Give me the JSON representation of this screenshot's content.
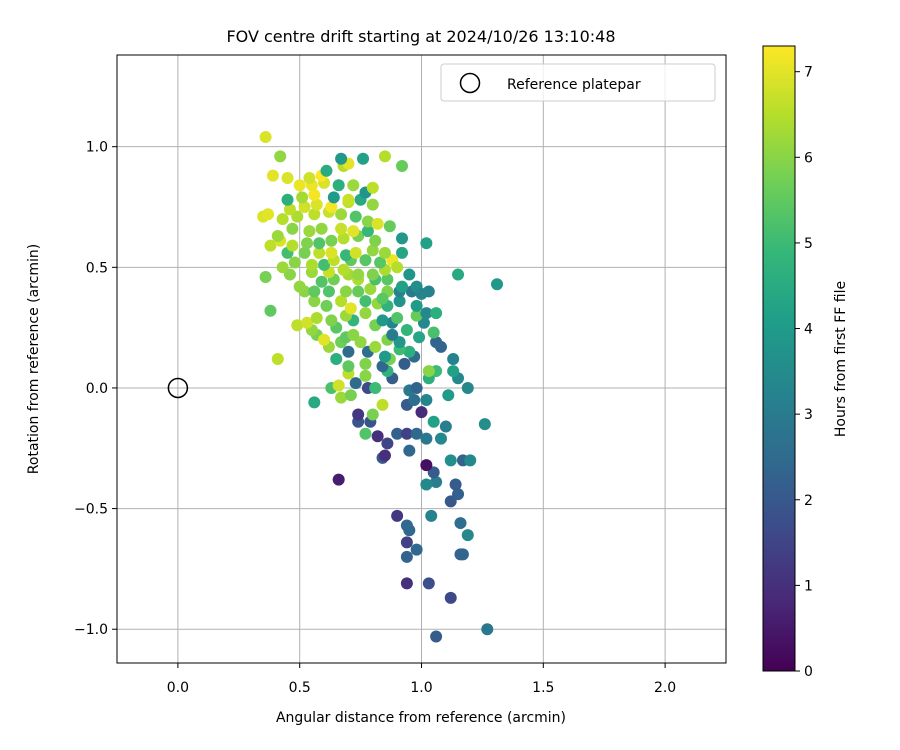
{
  "chart_data": {
    "type": "scatter",
    "title": "FOV centre drift starting at 2024/10/26 13:10:48",
    "xlabel": "Angular distance from reference (arcmin)",
    "ylabel": "Rotation from reference (arcmin)",
    "xlim": [
      -0.25,
      2.25
    ],
    "ylim": [
      -1.14,
      1.38
    ],
    "xticks": [
      "0.0",
      "0.5",
      "1.0",
      "1.5",
      "2.0"
    ],
    "xtick_values": [
      0,
      0.5,
      1.0,
      1.5,
      2.0
    ],
    "yticks": [
      "−1.0",
      "−0.5",
      "0.0",
      "0.5",
      "1.0"
    ],
    "ytick_values": [
      -1.0,
      -0.5,
      0,
      0.5,
      1.0
    ],
    "grid": true,
    "legend": {
      "label": "Reference platepar",
      "placement": "top-right",
      "marker": "open-circle"
    },
    "reference_point": {
      "x": 0.0,
      "y": 0.0
    },
    "colorbar": {
      "label": "Hours from first FF file",
      "range": [
        0,
        7.3
      ],
      "ticks": [
        "0",
        "1",
        "2",
        "3",
        "4",
        "5",
        "6",
        "7"
      ],
      "tick_values": [
        0,
        1,
        2,
        3,
        4,
        5,
        6,
        7
      ],
      "colormap": "viridis"
    },
    "points": [
      [
        1.06,
        -1.03,
        2.1
      ],
      [
        1.27,
        -1.0,
        2.9
      ],
      [
        1.12,
        -0.87,
        1.6
      ],
      [
        0.94,
        -0.81,
        1.0
      ],
      [
        1.03,
        -0.81,
        1.8
      ],
      [
        1.17,
        -0.69,
        2.4
      ],
      [
        1.16,
        -0.69,
        2.3
      ],
      [
        0.94,
        -0.7,
        2.3
      ],
      [
        0.94,
        -0.64,
        1.4
      ],
      [
        0.98,
        -0.67,
        2.4
      ],
      [
        1.19,
        -0.61,
        3.4
      ],
      [
        0.95,
        -0.59,
        2.4
      ],
      [
        0.94,
        -0.57,
        2.4
      ],
      [
        1.16,
        -0.56,
        2.6
      ],
      [
        1.04,
        -0.53,
        3.2
      ],
      [
        0.9,
        -0.53,
        1.2
      ],
      [
        1.12,
        -0.47,
        2.0
      ],
      [
        1.15,
        -0.44,
        2.2
      ],
      [
        1.14,
        -0.4,
        2.1
      ],
      [
        1.06,
        -0.39,
        3.1
      ],
      [
        1.02,
        -0.4,
        3.4
      ],
      [
        1.05,
        -0.35,
        2.1
      ],
      [
        1.02,
        -0.32,
        0.3
      ],
      [
        0.66,
        -0.38,
        0.6
      ],
      [
        0.84,
        -0.29,
        2.0
      ],
      [
        0.85,
        -0.28,
        1.0
      ],
      [
        1.12,
        -0.3,
        3.6
      ],
      [
        1.17,
        -0.3,
        2.3
      ],
      [
        1.2,
        -0.3,
        3.4
      ],
      [
        0.86,
        -0.23,
        1.5
      ],
      [
        0.95,
        -0.26,
        2.4
      ],
      [
        0.9,
        -0.19,
        2.2
      ],
      [
        0.94,
        -0.19,
        1.4
      ],
      [
        0.98,
        -0.19,
        2.4
      ],
      [
        1.02,
        -0.21,
        2.9
      ],
      [
        1.08,
        -0.21,
        3.4
      ],
      [
        1.26,
        -0.15,
        3.6
      ],
      [
        0.82,
        -0.2,
        1.0
      ],
      [
        0.77,
        -0.19,
        5.3
      ],
      [
        0.74,
        -0.14,
        1.9
      ],
      [
        0.79,
        -0.14,
        1.9
      ],
      [
        1.0,
        -0.1,
        0.9
      ],
      [
        1.05,
        -0.14,
        4.2
      ],
      [
        1.1,
        -0.16,
        3.1
      ],
      [
        0.74,
        -0.11,
        1.2
      ],
      [
        0.8,
        -0.11,
        5.8
      ],
      [
        0.84,
        -0.07,
        6.6
      ],
      [
        0.94,
        -0.07,
        2.1
      ],
      [
        0.97,
        -0.05,
        2.6
      ],
      [
        1.02,
        -0.05,
        3.3
      ],
      [
        0.56,
        -0.06,
        4.4
      ],
      [
        0.67,
        -0.04,
        6.2
      ],
      [
        0.71,
        -0.03,
        5.8
      ],
      [
        0.63,
        0.0,
        5.2
      ],
      [
        0.66,
        0.01,
        6.8
      ],
      [
        0.73,
        0.02,
        2.5
      ],
      [
        0.78,
        0.0,
        1.6
      ],
      [
        0.81,
        0.0,
        5.0
      ],
      [
        0.95,
        -0.01,
        2.9
      ],
      [
        0.98,
        0.0,
        2.3
      ],
      [
        1.11,
        -0.03,
        4.0
      ],
      [
        1.19,
        0.0,
        3.4
      ],
      [
        0.88,
        0.04,
        2.1
      ],
      [
        1.03,
        0.04,
        4.6
      ],
      [
        1.06,
        0.07,
        5.0
      ],
      [
        1.15,
        0.04,
        3.4
      ],
      [
        0.7,
        0.06,
        6.6
      ],
      [
        0.77,
        0.05,
        6.0
      ],
      [
        0.86,
        0.07,
        4.7
      ],
      [
        0.84,
        0.09,
        2.4
      ],
      [
        1.03,
        0.07,
        6.0
      ],
      [
        1.13,
        0.07,
        4.2
      ],
      [
        1.13,
        0.12,
        3.2
      ],
      [
        0.93,
        0.1,
        2.1
      ],
      [
        0.97,
        0.13,
        2.5
      ],
      [
        0.65,
        0.12,
        4.6
      ],
      [
        0.7,
        0.09,
        5.5
      ],
      [
        0.77,
        0.1,
        5.9
      ],
      [
        0.87,
        0.12,
        5.8
      ],
      [
        0.95,
        0.15,
        4.6
      ],
      [
        1.08,
        0.17,
        2.3
      ],
      [
        0.41,
        0.12,
        6.6
      ],
      [
        0.78,
        0.15,
        2.6
      ],
      [
        0.85,
        0.13,
        4.0
      ],
      [
        0.91,
        0.16,
        5.0
      ],
      [
        0.62,
        0.17,
        6.2
      ],
      [
        0.67,
        0.19,
        5.7
      ],
      [
        0.75,
        0.19,
        6.1
      ],
      [
        0.81,
        0.17,
        6.2
      ],
      [
        0.91,
        0.19,
        3.9
      ],
      [
        0.57,
        0.22,
        5.8
      ],
      [
        0.6,
        0.2,
        7.0
      ],
      [
        0.69,
        0.21,
        5.5
      ],
      [
        0.72,
        0.22,
        6.0
      ],
      [
        0.86,
        0.2,
        5.9
      ],
      [
        0.99,
        0.21,
        4.3
      ],
      [
        1.06,
        0.19,
        2.3
      ],
      [
        0.55,
        0.24,
        6.1
      ],
      [
        0.65,
        0.25,
        5.4
      ],
      [
        0.72,
        0.28,
        4.8
      ],
      [
        0.81,
        0.26,
        5.8
      ],
      [
        0.88,
        0.27,
        3.3
      ],
      [
        0.94,
        0.24,
        4.8
      ],
      [
        1.01,
        0.27,
        3.4
      ],
      [
        1.05,
        0.23,
        5.2
      ],
      [
        0.49,
        0.26,
        6.6
      ],
      [
        0.53,
        0.27,
        6.8
      ],
      [
        0.57,
        0.29,
        6.4
      ],
      [
        0.63,
        0.28,
        5.9
      ],
      [
        0.69,
        0.3,
        6.2
      ],
      [
        0.77,
        0.31,
        6.1
      ],
      [
        0.84,
        0.28,
        3.9
      ],
      [
        0.9,
        0.29,
        5.3
      ],
      [
        0.98,
        0.3,
        5.6
      ],
      [
        1.02,
        0.31,
        3.4
      ],
      [
        1.06,
        0.31,
        4.6
      ],
      [
        0.56,
        0.36,
        6.0
      ],
      [
        0.61,
        0.34,
        5.7
      ],
      [
        0.67,
        0.36,
        6.5
      ],
      [
        0.71,
        0.33,
        7.0
      ],
      [
        0.77,
        0.36,
        5.1
      ],
      [
        0.82,
        0.35,
        6.1
      ],
      [
        0.86,
        0.34,
        4.7
      ],
      [
        0.91,
        0.36,
        3.8
      ],
      [
        0.98,
        0.34,
        4.0
      ],
      [
        0.52,
        0.4,
        6.0
      ],
      [
        0.56,
        0.4,
        5.5
      ],
      [
        0.62,
        0.4,
        5.3
      ],
      [
        0.69,
        0.4,
        6.0
      ],
      [
        0.74,
        0.4,
        5.6
      ],
      [
        0.79,
        0.41,
        6.2
      ],
      [
        0.86,
        0.4,
        5.9
      ],
      [
        0.91,
        0.4,
        3.2
      ],
      [
        0.96,
        0.4,
        3.0
      ],
      [
        1.03,
        0.4,
        3.2
      ],
      [
        0.38,
        0.32,
        5.5
      ],
      [
        0.5,
        0.42,
        6.1
      ],
      [
        0.59,
        0.44,
        5.3
      ],
      [
        0.64,
        0.45,
        5.7
      ],
      [
        0.7,
        0.47,
        6.3
      ],
      [
        0.74,
        0.45,
        6.4
      ],
      [
        0.81,
        0.45,
        5.2
      ],
      [
        0.86,
        0.45,
        5.4
      ],
      [
        0.92,
        0.42,
        4.2
      ],
      [
        0.98,
        0.42,
        3.6
      ],
      [
        0.36,
        0.46,
        5.8
      ],
      [
        0.46,
        0.47,
        6.0
      ],
      [
        0.55,
        0.48,
        6.2
      ],
      [
        0.62,
        0.48,
        6.7
      ],
      [
        0.68,
        0.49,
        6.5
      ],
      [
        0.74,
        0.47,
        6.1
      ],
      [
        0.8,
        0.47,
        5.9
      ],
      [
        0.85,
        0.49,
        6.4
      ],
      [
        0.95,
        0.47,
        3.8
      ],
      [
        1.15,
        0.47,
        4.4
      ],
      [
        1.31,
        0.43,
        3.9
      ],
      [
        0.43,
        0.5,
        6.2
      ],
      [
        0.48,
        0.52,
        6.0
      ],
      [
        0.55,
        0.51,
        6.4
      ],
      [
        0.6,
        0.51,
        5.1
      ],
      [
        0.64,
        0.53,
        6.6
      ],
      [
        0.71,
        0.53,
        5.5
      ],
      [
        0.77,
        0.53,
        5.4
      ],
      [
        0.83,
        0.52,
        5.4
      ],
      [
        0.88,
        0.53,
        7.1
      ],
      [
        0.9,
        0.5,
        6.5
      ],
      [
        0.45,
        0.56,
        5.1
      ],
      [
        0.52,
        0.56,
        5.8
      ],
      [
        0.58,
        0.56,
        6.6
      ],
      [
        0.63,
        0.56,
        6.9
      ],
      [
        0.69,
        0.55,
        4.9
      ],
      [
        0.73,
        0.56,
        6.8
      ],
      [
        0.8,
        0.57,
        6.1
      ],
      [
        0.85,
        0.56,
        6.2
      ],
      [
        0.92,
        0.56,
        4.3
      ],
      [
        0.38,
        0.59,
        6.6
      ],
      [
        0.42,
        0.61,
        6.9
      ],
      [
        0.47,
        0.59,
        6.5
      ],
      [
        0.53,
        0.6,
        5.9
      ],
      [
        0.58,
        0.6,
        5.3
      ],
      [
        0.63,
        0.61,
        5.8
      ],
      [
        0.68,
        0.62,
        6.5
      ],
      [
        0.74,
        0.63,
        5.8
      ],
      [
        0.81,
        0.61,
        5.9
      ],
      [
        0.92,
        0.62,
        3.9
      ],
      [
        1.02,
        0.6,
        4.2
      ],
      [
        0.41,
        0.63,
        6.2
      ],
      [
        0.47,
        0.66,
        6.0
      ],
      [
        0.54,
        0.65,
        6.2
      ],
      [
        0.59,
        0.66,
        6.1
      ],
      [
        0.67,
        0.66,
        6.7
      ],
      [
        0.72,
        0.65,
        7.0
      ],
      [
        0.78,
        0.65,
        4.9
      ],
      [
        0.87,
        0.67,
        5.6
      ],
      [
        0.35,
        0.71,
        6.9
      ],
      [
        0.43,
        0.7,
        6.5
      ],
      [
        0.49,
        0.71,
        6.4
      ],
      [
        0.56,
        0.72,
        6.6
      ],
      [
        0.62,
        0.73,
        6.7
      ],
      [
        0.67,
        0.72,
        6.2
      ],
      [
        0.73,
        0.71,
        5.3
      ],
      [
        0.78,
        0.69,
        6.0
      ],
      [
        0.82,
        0.68,
        6.9
      ],
      [
        0.37,
        0.72,
        7.0
      ],
      [
        0.46,
        0.74,
        6.6
      ],
      [
        0.52,
        0.75,
        6.8
      ],
      [
        0.57,
        0.76,
        6.9
      ],
      [
        0.63,
        0.75,
        7.2
      ],
      [
        0.7,
        0.77,
        6.6
      ],
      [
        0.75,
        0.78,
        4.4
      ],
      [
        0.8,
        0.76,
        6.1
      ],
      [
        0.45,
        0.78,
        4.6
      ],
      [
        0.51,
        0.79,
        6.3
      ],
      [
        0.56,
        0.8,
        7.2
      ],
      [
        0.64,
        0.79,
        4.0
      ],
      [
        0.7,
        0.78,
        6.7
      ],
      [
        0.77,
        0.81,
        3.8
      ],
      [
        0.5,
        0.84,
        7.1
      ],
      [
        0.55,
        0.84,
        7.1
      ],
      [
        0.6,
        0.85,
        6.9
      ],
      [
        0.66,
        0.84,
        4.6
      ],
      [
        0.72,
        0.84,
        6.2
      ],
      [
        0.8,
        0.83,
        6.6
      ],
      [
        0.39,
        0.88,
        7.0
      ],
      [
        0.45,
        0.87,
        6.9
      ],
      [
        0.54,
        0.87,
        6.8
      ],
      [
        0.59,
        0.88,
        7.3
      ],
      [
        0.61,
        0.9,
        4.5
      ],
      [
        0.68,
        0.92,
        6.5
      ],
      [
        0.7,
        0.93,
        7.0
      ],
      [
        0.67,
        0.95,
        3.9
      ],
      [
        0.76,
        0.95,
        4.2
      ],
      [
        0.85,
        0.96,
        6.5
      ],
      [
        0.92,
        0.92,
        5.6
      ],
      [
        0.42,
        0.96,
        6.1
      ],
      [
        0.36,
        1.04,
        6.9
      ],
      [
        1.0,
        0.39,
        3.3
      ],
      [
        0.84,
        0.37,
        5.4
      ],
      [
        0.7,
        0.15,
        2.5
      ],
      [
        0.88,
        0.22,
        3.0
      ]
    ]
  }
}
